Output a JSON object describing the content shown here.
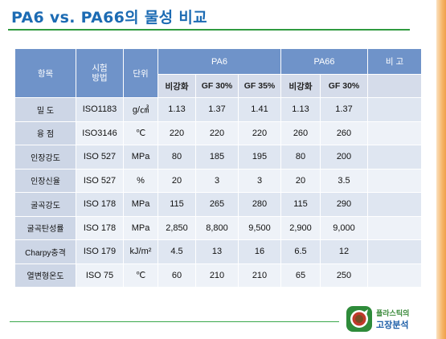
{
  "title": "PA6 vs. PA66의 물성 비교",
  "table": {
    "headers": {
      "item": "항목",
      "method": "시험\n방법",
      "unit": "단위",
      "pa6": "PA6",
      "pa66": "PA66",
      "remarks": "비 고"
    },
    "sub_headers": {
      "pa6": [
        "비강화",
        "GF 30%",
        "GF 35%"
      ],
      "pa66": [
        "비강화",
        "GF 30%"
      ]
    },
    "rows": [
      {
        "item": "밀 도",
        "method": "ISO1183",
        "unit": "g/㎤",
        "pa6": [
          "1.13",
          "1.37",
          "1.41"
        ],
        "pa66": [
          "1.13",
          "1.37"
        ],
        "remarks": ""
      },
      {
        "item": "융 점",
        "method": "ISO3146",
        "unit": "℃",
        "pa6": [
          "220",
          "220",
          "220"
        ],
        "pa66": [
          "260",
          "260"
        ],
        "remarks": ""
      },
      {
        "item": "인장강도",
        "method": "ISO 527",
        "unit": "MPa",
        "pa6": [
          "80",
          "185",
          "195"
        ],
        "pa66": [
          "80",
          "200"
        ],
        "remarks": ""
      },
      {
        "item": "인장신율",
        "method": "ISO 527",
        "unit": "%",
        "pa6": [
          "20",
          "3",
          "3"
        ],
        "pa66": [
          "20",
          "3.5"
        ],
        "remarks": ""
      },
      {
        "item": "굴곡강도",
        "method": "ISO 178",
        "unit": "MPa",
        "pa6": [
          "115",
          "265",
          "280"
        ],
        "pa66": [
          "115",
          "290"
        ],
        "remarks": ""
      },
      {
        "item": "굴곡탄성률",
        "method": "ISO 178",
        "unit": "MPa",
        "pa6": [
          "2,850",
          "8,800",
          "9,500"
        ],
        "pa66": [
          "2,900",
          "9,000"
        ],
        "remarks": ""
      },
      {
        "item": "Charpy충격",
        "method": "ISO 179",
        "unit": "kJ/m²",
        "pa6": [
          "4.5",
          "13",
          "16"
        ],
        "pa66": [
          "6.5",
          "12"
        ],
        "remarks": ""
      },
      {
        "item": "열변형온도",
        "method": "ISO 75",
        "unit": "℃",
        "pa6": [
          "60",
          "210",
          "210"
        ],
        "pa66": [
          "65",
          "250"
        ],
        "remarks": ""
      }
    ]
  },
  "logo": {
    "line1": "플라스틱의",
    "line2": "고장분석",
    "icon": "plastic-failure-analysis-logo-icon",
    "colors": {
      "green": "#2e8b3a",
      "red": "#c0392b",
      "brown": "#7a4a22"
    }
  },
  "colors": {
    "title": "#1c6bb3",
    "header": "#6f93c9",
    "accent_line": "#2f9a3f",
    "side_bar": "#f0a04b"
  }
}
